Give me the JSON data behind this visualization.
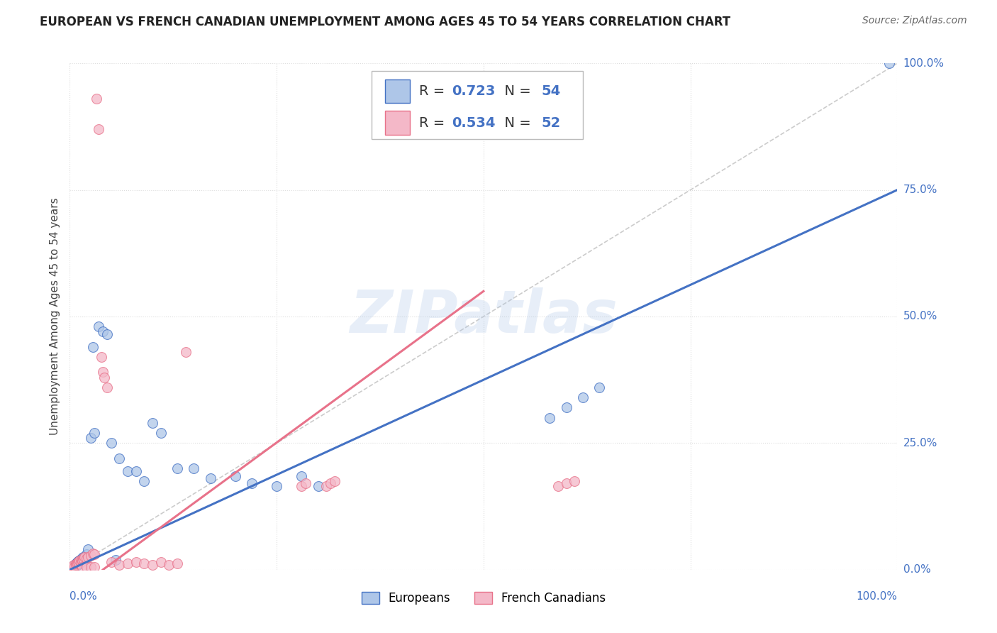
{
  "title": "EUROPEAN VS FRENCH CANADIAN UNEMPLOYMENT AMONG AGES 45 TO 54 YEARS CORRELATION CHART",
  "source": "Source: ZipAtlas.com",
  "ylabel": "Unemployment Among Ages 45 to 54 years",
  "ytick_labels": [
    "0.0%",
    "25.0%",
    "50.0%",
    "75.0%",
    "100.0%"
  ],
  "ytick_values": [
    0,
    0.25,
    0.5,
    0.75,
    1.0
  ],
  "xtick_values": [
    0,
    0.25,
    0.5,
    0.75,
    1.0
  ],
  "xlim": [
    0,
    1.0
  ],
  "ylim": [
    0,
    1.0
  ],
  "european_R": 0.723,
  "european_N": 54,
  "french_R": 0.534,
  "french_N": 52,
  "european_color": "#aec6e8",
  "european_line_color": "#4472c4",
  "french_color": "#f4b8c8",
  "french_line_color": "#e8728a",
  "diagonal_color": "#cccccc",
  "background_color": "#ffffff",
  "grid_color": "#dddddd",
  "watermark": "ZIPatlas",
  "legend_label_european": "Europeans",
  "legend_label_french": "French Canadians",
  "eu_line_x0": 0.0,
  "eu_line_y0": 0.0,
  "eu_line_x1": 1.0,
  "eu_line_y1": 0.75,
  "fr_line_x0": 0.04,
  "fr_line_y0": 0.0,
  "fr_line_x1": 0.5,
  "fr_line_y1": 0.55,
  "european_points_x": [
    0.002,
    0.003,
    0.004,
    0.005,
    0.005,
    0.006,
    0.006,
    0.007,
    0.007,
    0.008,
    0.008,
    0.009,
    0.009,
    0.01,
    0.01,
    0.011,
    0.011,
    0.012,
    0.013,
    0.013,
    0.014,
    0.015,
    0.016,
    0.017,
    0.018,
    0.02,
    0.022,
    0.025,
    0.028,
    0.03,
    0.035,
    0.04,
    0.045,
    0.05,
    0.055,
    0.06,
    0.07,
    0.08,
    0.09,
    0.1,
    0.11,
    0.13,
    0.15,
    0.17,
    0.2,
    0.22,
    0.25,
    0.28,
    0.3,
    0.58,
    0.6,
    0.62,
    0.64,
    0.99
  ],
  "european_points_y": [
    0.005,
    0.004,
    0.006,
    0.005,
    0.008,
    0.006,
    0.01,
    0.007,
    0.012,
    0.009,
    0.014,
    0.01,
    0.015,
    0.011,
    0.016,
    0.012,
    0.018,
    0.013,
    0.02,
    0.015,
    0.022,
    0.018,
    0.025,
    0.02,
    0.025,
    0.03,
    0.04,
    0.26,
    0.44,
    0.27,
    0.48,
    0.47,
    0.465,
    0.25,
    0.02,
    0.22,
    0.195,
    0.195,
    0.175,
    0.29,
    0.27,
    0.2,
    0.2,
    0.18,
    0.185,
    0.17,
    0.165,
    0.185,
    0.165,
    0.3,
    0.32,
    0.34,
    0.36,
    1.0
  ],
  "french_points_x": [
    0.002,
    0.003,
    0.004,
    0.005,
    0.005,
    0.006,
    0.007,
    0.007,
    0.008,
    0.009,
    0.01,
    0.011,
    0.012,
    0.013,
    0.014,
    0.015,
    0.016,
    0.017,
    0.018,
    0.02,
    0.022,
    0.025,
    0.028,
    0.03,
    0.032,
    0.035,
    0.038,
    0.04,
    0.042,
    0.045,
    0.05,
    0.06,
    0.07,
    0.08,
    0.09,
    0.1,
    0.11,
    0.12,
    0.13,
    0.14,
    0.28,
    0.285,
    0.31,
    0.315,
    0.32,
    0.59,
    0.6,
    0.61,
    0.015,
    0.02,
    0.025,
    0.03
  ],
  "french_points_y": [
    0.005,
    0.004,
    0.007,
    0.006,
    0.009,
    0.007,
    0.011,
    0.009,
    0.013,
    0.012,
    0.015,
    0.014,
    0.018,
    0.016,
    0.02,
    0.018,
    0.022,
    0.02,
    0.025,
    0.022,
    0.025,
    0.028,
    0.032,
    0.03,
    0.93,
    0.87,
    0.42,
    0.39,
    0.38,
    0.36,
    0.015,
    0.01,
    0.012,
    0.015,
    0.012,
    0.01,
    0.015,
    0.01,
    0.012,
    0.43,
    0.165,
    0.17,
    0.165,
    0.17,
    0.175,
    0.165,
    0.17,
    0.175,
    0.005,
    0.005,
    0.006,
    0.006
  ]
}
